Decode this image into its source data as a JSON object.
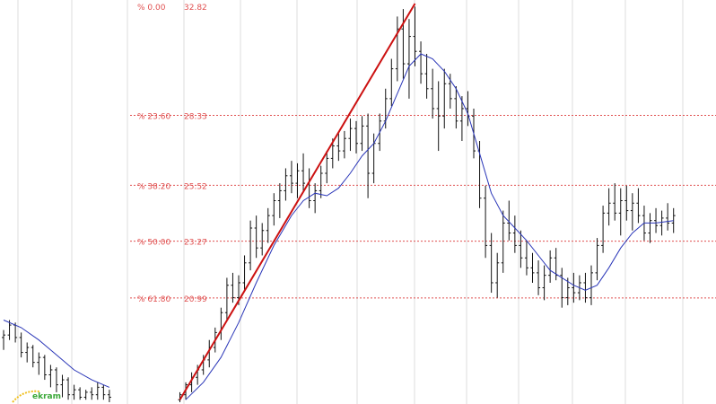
{
  "chart_data": {
    "type": "ohlc",
    "title": "",
    "xlabel": "",
    "ylabel": "",
    "grid": true,
    "ylim": [
      16.8,
      32.82
    ],
    "fibonacci": {
      "levels": [
        {
          "pct": 0.0,
          "pct_label": "% 0.00",
          "price_label": "32.82",
          "value": 32.82
        },
        {
          "pct": 23.6,
          "pct_label": "% 23.60",
          "price_label": "28.33",
          "value": 28.33
        },
        {
          "pct": 38.2,
          "pct_label": "% 38.20",
          "price_label": "25.52",
          "value": 25.52
        },
        {
          "pct": 50.0,
          "pct_label": "% 50.00",
          "price_label": "23.27",
          "value": 23.27
        },
        {
          "pct": 61.8,
          "pct_label": "% 61.80",
          "price_label": "20.99",
          "value": 20.99
        }
      ]
    },
    "series": [
      {
        "kind": "ohlc",
        "bars": [
          [
            0,
            19.4,
            19.7,
            18.9,
            19.5
          ],
          [
            1,
            19.5,
            20.1,
            19.3,
            19.9
          ],
          [
            2,
            19.9,
            20.0,
            19.2,
            19.4
          ],
          [
            3,
            19.4,
            19.6,
            18.6,
            18.8
          ],
          [
            4,
            18.8,
            19.2,
            18.4,
            19.0
          ],
          [
            5,
            19.0,
            19.1,
            18.2,
            18.4
          ],
          [
            6,
            18.4,
            18.8,
            17.9,
            18.6
          ],
          [
            7,
            18.6,
            18.7,
            17.7,
            17.9
          ],
          [
            8,
            17.9,
            18.3,
            17.4,
            18.1
          ],
          [
            9,
            18.1,
            18.2,
            17.2,
            17.5
          ],
          [
            10,
            17.5,
            17.9,
            17.0,
            17.7
          ],
          [
            11,
            17.7,
            17.8,
            16.9,
            17.1
          ],
          [
            12,
            17.1,
            17.5,
            16.9,
            17.3
          ],
          [
            13,
            17.3,
            17.4,
            16.9,
            17.0
          ],
          [
            14,
            17.0,
            17.3,
            16.9,
            17.2
          ],
          [
            15,
            17.2,
            17.4,
            16.9,
            17.1
          ],
          [
            16,
            17.1,
            17.6,
            16.9,
            17.4
          ],
          [
            17,
            17.4,
            17.5,
            16.9,
            17.1
          ],
          [
            18,
            17.1,
            17.3,
            16.8,
            17.0
          ],
          [
            30,
            16.9,
            17.2,
            16.8,
            17.1
          ],
          [
            31,
            17.1,
            17.6,
            16.9,
            17.5
          ],
          [
            32,
            17.5,
            18.0,
            17.2,
            17.8
          ],
          [
            33,
            17.8,
            18.3,
            17.5,
            18.1
          ],
          [
            34,
            18.1,
            18.7,
            17.9,
            18.5
          ],
          [
            35,
            18.5,
            19.3,
            18.2,
            19.0
          ],
          [
            36,
            19.0,
            19.8,
            18.8,
            19.6
          ],
          [
            37,
            19.6,
            20.6,
            19.3,
            20.4
          ],
          [
            38,
            20.4,
            21.8,
            20.1,
            21.5
          ],
          [
            39,
            21.5,
            22.0,
            20.8,
            21.0
          ],
          [
            40,
            21.0,
            21.9,
            20.7,
            21.6
          ],
          [
            41,
            21.6,
            22.7,
            21.3,
            22.4
          ],
          [
            42,
            22.4,
            24.1,
            22.1,
            23.8
          ],
          [
            43,
            23.8,
            24.3,
            22.6,
            23.0
          ],
          [
            44,
            23.0,
            24.0,
            22.7,
            23.7
          ],
          [
            45,
            23.7,
            24.6,
            23.2,
            24.3
          ],
          [
            46,
            24.3,
            25.2,
            23.9,
            24.9
          ],
          [
            47,
            24.9,
            25.6,
            24.2,
            25.3
          ],
          [
            48,
            25.3,
            26.2,
            24.9,
            25.9
          ],
          [
            49,
            25.9,
            26.5,
            25.2,
            25.6
          ],
          [
            50,
            25.6,
            26.4,
            25.0,
            26.1
          ],
          [
            51,
            26.1,
            26.8,
            25.3,
            25.6
          ],
          [
            52,
            25.6,
            26.2,
            24.6,
            24.9
          ],
          [
            53,
            24.9,
            25.6,
            24.4,
            25.3
          ],
          [
            54,
            25.3,
            26.3,
            25.0,
            26.0
          ],
          [
            55,
            26.0,
            26.9,
            25.6,
            26.6
          ],
          [
            56,
            26.6,
            27.4,
            26.2,
            27.1
          ],
          [
            57,
            27.1,
            27.6,
            26.5,
            26.9
          ],
          [
            58,
            26.9,
            27.7,
            26.6,
            27.4
          ],
          [
            59,
            27.4,
            28.2,
            26.9,
            27.8
          ],
          [
            60,
            27.8,
            28.1,
            26.8,
            27.2
          ],
          [
            61,
            27.2,
            28.3,
            26.9,
            27.9
          ],
          [
            62,
            27.9,
            28.4,
            25.0,
            26.0
          ],
          [
            63,
            26.0,
            27.6,
            25.6,
            27.2
          ],
          [
            64,
            27.2,
            28.4,
            26.9,
            28.1
          ],
          [
            65,
            28.1,
            29.4,
            27.8,
            29.0
          ],
          [
            66,
            29.0,
            30.6,
            28.7,
            30.2
          ],
          [
            67,
            30.2,
            32.3,
            29.7,
            31.8
          ],
          [
            68,
            31.8,
            32.6,
            29.8,
            30.4
          ],
          [
            69,
            30.4,
            32.2,
            29.0,
            31.5
          ],
          [
            70,
            31.5,
            32.7,
            30.3,
            30.9
          ],
          [
            71,
            30.9,
            31.3,
            29.6,
            30.0
          ],
          [
            72,
            30.0,
            30.8,
            29.0,
            29.4
          ],
          [
            73,
            29.4,
            30.2,
            28.2,
            28.6
          ],
          [
            74,
            28.6,
            29.7,
            26.9,
            28.3
          ],
          [
            75,
            28.3,
            30.2,
            27.8,
            29.6
          ],
          [
            76,
            29.6,
            30.0,
            28.6,
            29.0
          ],
          [
            77,
            29.0,
            29.5,
            27.8,
            28.1
          ],
          [
            78,
            28.1,
            29.1,
            27.3,
            28.6
          ],
          [
            79,
            28.6,
            29.3,
            27.9,
            28.3
          ],
          [
            80,
            28.3,
            28.6,
            26.6,
            26.9
          ],
          [
            81,
            26.9,
            27.3,
            24.6,
            25.0
          ],
          [
            82,
            25.0,
            25.5,
            22.6,
            23.1
          ],
          [
            83,
            23.1,
            23.6,
            21.2,
            21.6
          ],
          [
            84,
            21.6,
            22.8,
            21.0,
            22.4
          ],
          [
            85,
            22.4,
            24.5,
            22.0,
            24.0
          ],
          [
            86,
            24.0,
            24.9,
            23.3,
            23.6
          ],
          [
            87,
            23.6,
            24.3,
            22.8,
            23.1
          ],
          [
            88,
            23.1,
            23.7,
            22.2,
            22.6
          ],
          [
            89,
            22.6,
            23.3,
            21.9,
            22.2
          ],
          [
            90,
            22.2,
            22.8,
            21.6,
            22.0
          ],
          [
            91,
            22.0,
            22.5,
            21.1,
            21.4
          ],
          [
            92,
            21.4,
            22.3,
            20.9,
            21.9
          ],
          [
            93,
            21.9,
            22.9,
            21.6,
            22.6
          ],
          [
            94,
            22.6,
            23.0,
            21.7,
            21.9
          ],
          [
            95,
            21.9,
            22.2,
            20.6,
            21.0
          ],
          [
            96,
            21.0,
            21.8,
            20.7,
            21.4
          ],
          [
            97,
            21.4,
            22.0,
            20.8,
            21.2
          ],
          [
            98,
            21.2,
            21.9,
            20.9,
            21.6
          ],
          [
            99,
            21.6,
            22.0,
            20.8,
            21.0
          ],
          [
            100,
            21.0,
            22.3,
            20.7,
            22.0
          ],
          [
            101,
            22.0,
            23.4,
            21.7,
            23.1
          ],
          [
            102,
            23.1,
            24.7,
            22.8,
            24.4
          ],
          [
            103,
            24.4,
            25.4,
            23.9,
            24.8
          ],
          [
            104,
            24.8,
            25.6,
            24.1,
            24.4
          ],
          [
            105,
            24.4,
            25.4,
            23.5,
            24.9
          ],
          [
            106,
            24.9,
            25.5,
            24.1,
            24.5
          ],
          [
            107,
            24.5,
            25.2,
            23.7,
            24.8
          ],
          [
            108,
            24.8,
            25.4,
            24.0,
            24.3
          ],
          [
            109,
            24.3,
            24.7,
            23.3,
            23.6
          ],
          [
            110,
            23.6,
            24.4,
            23.2,
            24.1
          ],
          [
            111,
            24.1,
            24.6,
            23.6,
            23.9
          ],
          [
            112,
            23.9,
            24.5,
            23.5,
            24.2
          ],
          [
            113,
            24.2,
            24.8,
            23.7,
            24.0
          ],
          [
            114,
            24.0,
            24.6,
            23.6,
            24.3
          ]
        ]
      },
      {
        "kind": "line",
        "color": "#2a36b8",
        "points": [
          [
            0,
            20.1
          ],
          [
            3,
            19.8
          ],
          [
            6,
            19.3
          ],
          [
            9,
            18.7
          ],
          [
            12,
            18.1
          ],
          [
            15,
            17.7
          ],
          [
            18,
            17.4
          ],
          [
            31,
            16.9
          ],
          [
            34,
            17.6
          ],
          [
            37,
            18.6
          ],
          [
            40,
            20.0
          ],
          [
            43,
            21.6
          ],
          [
            46,
            23.1
          ],
          [
            49,
            24.3
          ],
          [
            51,
            24.9
          ],
          [
            53,
            25.2
          ],
          [
            55,
            25.1
          ],
          [
            57,
            25.4
          ],
          [
            59,
            26.0
          ],
          [
            61,
            26.7
          ],
          [
            63,
            27.2
          ],
          [
            65,
            28.1
          ],
          [
            67,
            29.2
          ],
          [
            69,
            30.3
          ],
          [
            71,
            30.8
          ],
          [
            73,
            30.6
          ],
          [
            75,
            30.1
          ],
          [
            77,
            29.4
          ],
          [
            79,
            28.4
          ],
          [
            81,
            26.8
          ],
          [
            83,
            25.2
          ],
          [
            85,
            24.3
          ],
          [
            87,
            23.8
          ],
          [
            89,
            23.3
          ],
          [
            91,
            22.7
          ],
          [
            93,
            22.1
          ],
          [
            95,
            21.8
          ],
          [
            97,
            21.5
          ],
          [
            99,
            21.3
          ],
          [
            101,
            21.5
          ],
          [
            103,
            22.2
          ],
          [
            105,
            23.0
          ],
          [
            107,
            23.6
          ],
          [
            109,
            24.0
          ],
          [
            111,
            24.0
          ],
          [
            114,
            24.1
          ]
        ]
      }
    ],
    "trendline": {
      "from": [
        30,
        16.9
      ],
      "to": [
        70,
        32.82
      ],
      "color": "#cc1111"
    },
    "logo_text": "ekram",
    "colors": {
      "fib_line": "#e05050",
      "bars": "#111111",
      "grid": "#dcdcdc"
    }
  }
}
